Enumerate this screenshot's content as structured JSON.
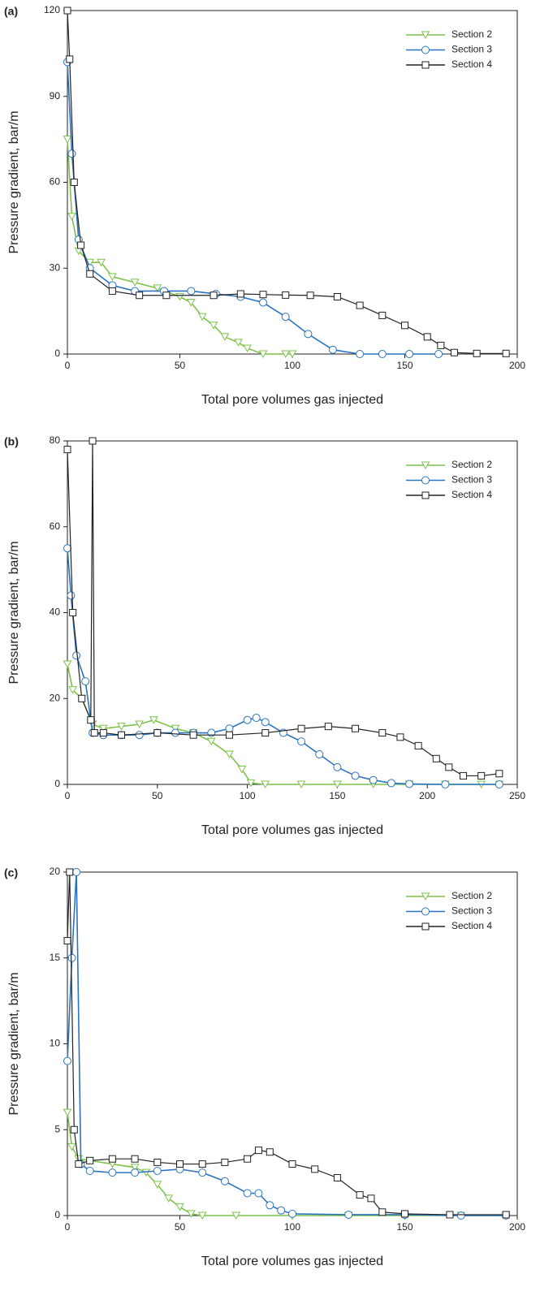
{
  "chart_data": [
    {
      "type": "line",
      "label": "(a)",
      "xlabel": "Total pore volumes gas injected",
      "ylabel": "Pressure gradient, bar/m",
      "xlim": [
        0,
        200
      ],
      "xticks": [
        0,
        50,
        100,
        150,
        200
      ],
      "ylim": [
        0,
        120
      ],
      "yticks": [
        0,
        30,
        60,
        90,
        120
      ],
      "legend": "upper right",
      "series": [
        {
          "name": "Section 2",
          "color": "#7dc24a",
          "marker": "triangle-down",
          "x": [
            0,
            2,
            5,
            10,
            15,
            20,
            30,
            40,
            50,
            55,
            60,
            65,
            70,
            76,
            80,
            87,
            97,
            100
          ],
          "values": [
            75,
            48,
            36,
            32,
            32,
            27,
            25,
            23,
            20,
            18,
            13,
            10,
            6,
            4,
            2,
            0,
            0,
            0
          ]
        },
        {
          "name": "Section 3",
          "color": "#2a73c2",
          "marker": "circle",
          "x": [
            0,
            2,
            5,
            10,
            20,
            30,
            43,
            55,
            66,
            77,
            87,
            97,
            107,
            118,
            130,
            140,
            152,
            165
          ],
          "values": [
            102,
            70,
            40,
            30,
            24,
            22,
            22,
            22,
            21,
            20,
            18,
            13,
            7,
            1.5,
            0,
            0,
            0,
            0
          ]
        },
        {
          "name": "Section 4",
          "color": "#222222",
          "marker": "square",
          "x": [
            0,
            1,
            3,
            6,
            10,
            20,
            32,
            44,
            65,
            77,
            87,
            97,
            108,
            120,
            130,
            140,
            150,
            160,
            166,
            172,
            182,
            195
          ],
          "values": [
            120,
            103,
            60,
            38,
            28,
            22,
            20.5,
            20.5,
            20.5,
            21,
            20.8,
            20.6,
            20.5,
            20,
            17,
            13.5,
            10,
            6,
            3,
            0.5,
            0.2,
            0.2
          ]
        }
      ]
    },
    {
      "type": "line",
      "label": "(b)",
      "xlabel": "Total pore volumes gas injected",
      "ylabel": "Pressure gradient, bar/m",
      "xlim": [
        0,
        250
      ],
      "xticks": [
        0,
        50,
        100,
        150,
        200,
        250
      ],
      "ylim": [
        0,
        80
      ],
      "yticks": [
        0,
        20,
        40,
        60,
        80
      ],
      "legend": "upper right",
      "series": [
        {
          "name": "Section 2",
          "color": "#7dc24a",
          "marker": "triangle-down",
          "x": [
            0,
            3,
            8,
            14,
            20,
            30,
            40,
            48,
            60,
            70,
            80,
            90,
            97,
            102,
            110,
            130,
            150,
            170,
            190,
            210,
            230,
            240
          ],
          "values": [
            28,
            22,
            20,
            14,
            13,
            13.5,
            14,
            15,
            13,
            12,
            10,
            7,
            3.5,
            0.3,
            0,
            0,
            0,
            0,
            0,
            0,
            0,
            0
          ]
        },
        {
          "name": "Section 3",
          "color": "#2a73c2",
          "marker": "circle",
          "x": [
            0,
            2,
            5,
            10,
            14,
            20,
            30,
            40,
            50,
            60,
            70,
            80,
            90,
            100,
            105,
            110,
            120,
            130,
            140,
            150,
            160,
            170,
            180,
            190,
            210,
            240
          ],
          "values": [
            55,
            44,
            30,
            24,
            12,
            11.5,
            11.5,
            11.5,
            12,
            12,
            12,
            12,
            13,
            15,
            15.5,
            14.5,
            12,
            10,
            7,
            4,
            2,
            1,
            0.3,
            0.1,
            0,
            0
          ]
        },
        {
          "name": "Section 4",
          "color": "#222222",
          "marker": "square",
          "x": [
            0,
            3,
            8,
            13,
            14,
            15,
            20,
            30,
            50,
            70,
            90,
            110,
            130,
            145,
            160,
            175,
            185,
            195,
            205,
            212,
            220,
            230,
            240
          ],
          "values": [
            78,
            40,
            20,
            15,
            80,
            12,
            12,
            11.5,
            12,
            11.5,
            11.5,
            12,
            13,
            13.5,
            13,
            12,
            11,
            9,
            6,
            4,
            2,
            2,
            2.5
          ]
        }
      ]
    },
    {
      "type": "line",
      "label": "(c)",
      "xlabel": "Total pore volumes gas injected",
      "ylabel": "Pressure gradient, bar/m",
      "xlim": [
        0,
        200
      ],
      "xticks": [
        0,
        50,
        100,
        150,
        200
      ],
      "ylim": [
        0,
        20
      ],
      "yticks": [
        0,
        5,
        10,
        15,
        20
      ],
      "legend": "upper right",
      "series": [
        {
          "name": "Section 2",
          "color": "#7dc24a",
          "marker": "triangle-down",
          "x": [
            0,
            2,
            5,
            10,
            20,
            30,
            35,
            40,
            45,
            50,
            55,
            60,
            75,
            100,
            125,
            150,
            175,
            195
          ],
          "values": [
            6,
            4,
            3.3,
            3.2,
            3,
            2.8,
            2.5,
            1.8,
            1,
            0.5,
            0.1,
            0,
            0,
            0,
            0,
            0,
            0,
            0
          ]
        },
        {
          "name": "Section 3",
          "color": "#2a73c2",
          "marker": "circle",
          "x": [
            0,
            2,
            4,
            6,
            10,
            20,
            30,
            40,
            50,
            60,
            70,
            80,
            85,
            90,
            95,
            100,
            125,
            150,
            175,
            195
          ],
          "values": [
            9,
            15,
            20,
            3,
            2.6,
            2.5,
            2.5,
            2.6,
            2.7,
            2.5,
            2,
            1.3,
            1.3,
            0.6,
            0.3,
            0.1,
            0.05,
            0.05,
            0,
            0
          ]
        },
        {
          "name": "Section 4",
          "color": "#222222",
          "marker": "square",
          "x": [
            0,
            1,
            3,
            5,
            10,
            20,
            30,
            40,
            50,
            60,
            70,
            80,
            85,
            90,
            100,
            110,
            120,
            130,
            135,
            140,
            150,
            170,
            195
          ],
          "values": [
            16,
            20,
            5,
            3,
            3.2,
            3.3,
            3.3,
            3.1,
            3,
            3,
            3.1,
            3.3,
            3.8,
            3.7,
            3,
            2.7,
            2.2,
            1.2,
            1,
            0.2,
            0.1,
            0.05,
            0.05
          ]
        }
      ]
    }
  ]
}
